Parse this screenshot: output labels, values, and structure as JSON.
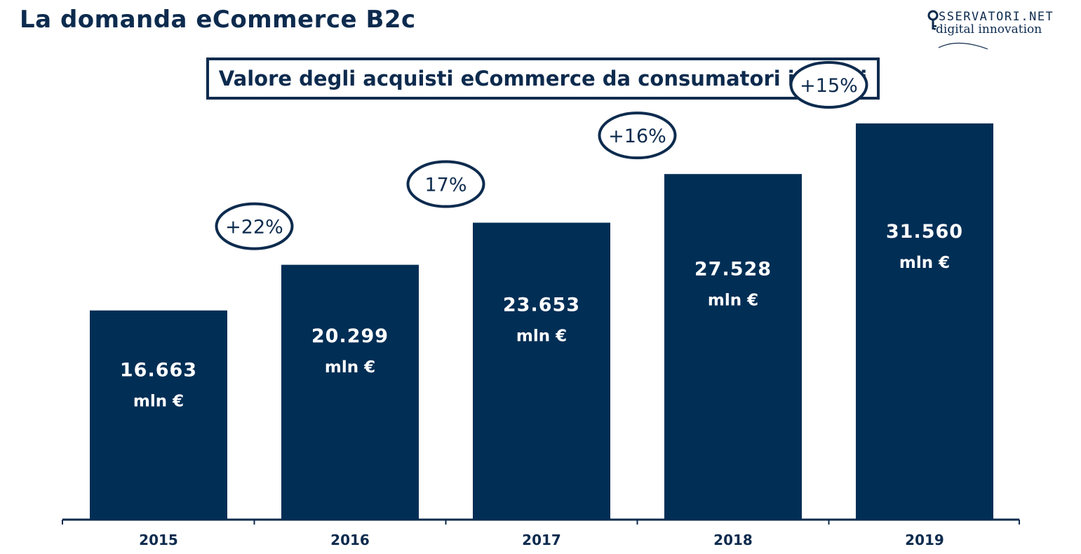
{
  "header": {
    "title": "La domanda eCommerce B2c",
    "logo_line1": "SSERVATORI.NET",
    "logo_line2": "digital innovation"
  },
  "colors": {
    "primary": "#0d2b4e",
    "bar": "#002e55",
    "label_text": "#ffffff"
  },
  "icons": {
    "logo": "key-icon"
  },
  "chart_data": {
    "type": "bar",
    "title": "Valore degli acquisti eCommerce da consumatori italiani",
    "xlabel": "",
    "ylabel": "",
    "categories": [
      "2015",
      "2016",
      "2017",
      "2018",
      "2019"
    ],
    "values": [
      16663,
      20299,
      23653,
      27528,
      31560
    ],
    "value_labels": [
      "16.663",
      "20.299",
      "23.653",
      "27.528",
      "31.560"
    ],
    "unit_label": "mln €",
    "growth_labels": [
      "+22%",
      "17%",
      "+16%",
      "+15%"
    ],
    "grid": false,
    "legend": "none"
  }
}
